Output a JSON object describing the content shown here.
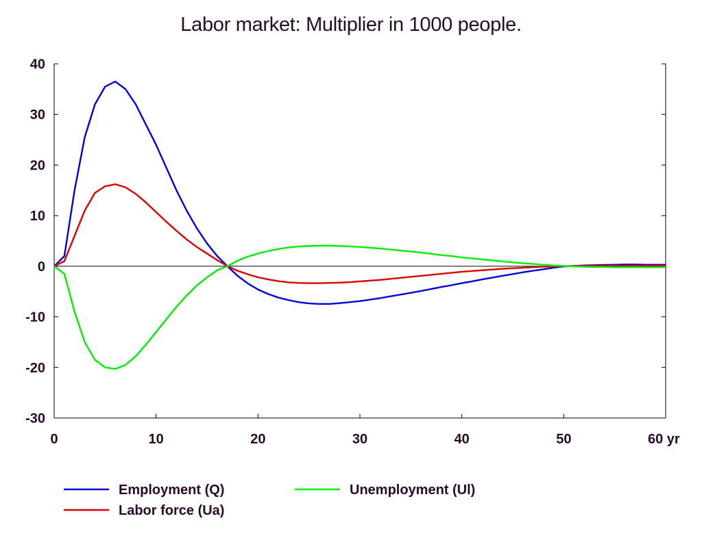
{
  "chart_data": {
    "type": "line",
    "title": "Labor market: Multiplier in 1000 people.",
    "xlabel": "",
    "ylabel": "",
    "x_unit_suffix": "yr",
    "xlim": [
      0,
      60
    ],
    "ylim": [
      -30,
      40
    ],
    "x_ticks": [
      0,
      10,
      20,
      30,
      40,
      50,
      60
    ],
    "y_ticks": [
      40,
      30,
      20,
      10,
      0,
      -10,
      -20,
      -30
    ],
    "x_tick_labels": [
      "0",
      "10",
      "20",
      "30",
      "40",
      "50",
      "60 yr"
    ],
    "y_tick_labels": [
      "40",
      "30",
      "20",
      "10",
      "0",
      "-10",
      "-20",
      "-30"
    ],
    "grid": false,
    "zero_line": true,
    "legend_position": "bottom",
    "x": [
      0,
      1,
      2,
      3,
      4,
      5,
      6,
      7,
      8,
      9,
      10,
      11,
      12,
      13,
      14,
      15,
      16,
      17,
      18,
      19,
      20,
      21,
      22,
      23,
      24,
      25,
      26,
      27,
      28,
      29,
      30,
      31,
      32,
      33,
      34,
      35,
      36,
      37,
      38,
      39,
      40,
      41,
      42,
      43,
      44,
      45,
      46,
      47,
      48,
      49,
      50,
      51,
      52,
      53,
      54,
      55,
      56,
      57,
      58,
      59,
      60
    ],
    "series": [
      {
        "name": "Employment (Q)",
        "color": "#0000dd",
        "values": [
          0,
          2,
          15,
          25.5,
          32,
          35.5,
          36.5,
          35,
          32,
          28,
          24,
          19.5,
          15,
          11,
          7.5,
          4.5,
          2,
          0,
          -1.9,
          -3.4,
          -4.6,
          -5.5,
          -6.2,
          -6.7,
          -7.1,
          -7.35,
          -7.45,
          -7.45,
          -7.3,
          -7.1,
          -6.9,
          -6.6,
          -6.3,
          -5.95,
          -5.6,
          -5.25,
          -4.9,
          -4.5,
          -4.1,
          -3.75,
          -3.35,
          -3.0,
          -2.6,
          -2.25,
          -1.9,
          -1.55,
          -1.2,
          -0.9,
          -0.6,
          -0.3,
          -0.05,
          0.05,
          0.15,
          0.2,
          0.25,
          0.3,
          0.35,
          0.35,
          0.3,
          0.3,
          0.3
        ]
      },
      {
        "name": "Labor force (Ua)",
        "color": "#dd0000",
        "values": [
          0,
          1,
          6,
          11,
          14.5,
          15.8,
          16.2,
          15.6,
          14.3,
          12.6,
          10.7,
          8.8,
          7,
          5.3,
          3.8,
          2.5,
          1.2,
          0,
          -0.9,
          -1.6,
          -2.2,
          -2.6,
          -2.95,
          -3.2,
          -3.3,
          -3.35,
          -3.35,
          -3.3,
          -3.25,
          -3.15,
          -3.0,
          -2.85,
          -2.7,
          -2.5,
          -2.3,
          -2.1,
          -1.9,
          -1.7,
          -1.5,
          -1.3,
          -1.1,
          -0.95,
          -0.8,
          -0.65,
          -0.5,
          -0.4,
          -0.3,
          -0.2,
          -0.1,
          -0.05,
          0,
          0.05,
          0.08,
          0.1,
          0.1,
          0.1,
          0.1,
          0.1,
          0.1,
          0.1,
          0.1
        ]
      },
      {
        "name": "Unemployment (Ul)",
        "color": "#00ee00",
        "values": [
          0,
          -1.5,
          -9,
          -15,
          -18.5,
          -20,
          -20.3,
          -19.5,
          -17.8,
          -15.5,
          -13,
          -10.5,
          -8,
          -5.8,
          -3.8,
          -2.2,
          -0.8,
          0,
          1.1,
          1.9,
          2.5,
          3.0,
          3.4,
          3.7,
          3.9,
          4.0,
          4.05,
          4.05,
          4.0,
          3.9,
          3.8,
          3.65,
          3.5,
          3.3,
          3.1,
          2.9,
          2.7,
          2.45,
          2.2,
          2.0,
          1.75,
          1.55,
          1.35,
          1.15,
          0.95,
          0.75,
          0.6,
          0.45,
          0.3,
          0.15,
          0.05,
          -0.05,
          -0.1,
          -0.15,
          -0.15,
          -0.2,
          -0.2,
          -0.2,
          -0.2,
          -0.2,
          -0.2
        ]
      }
    ]
  }
}
